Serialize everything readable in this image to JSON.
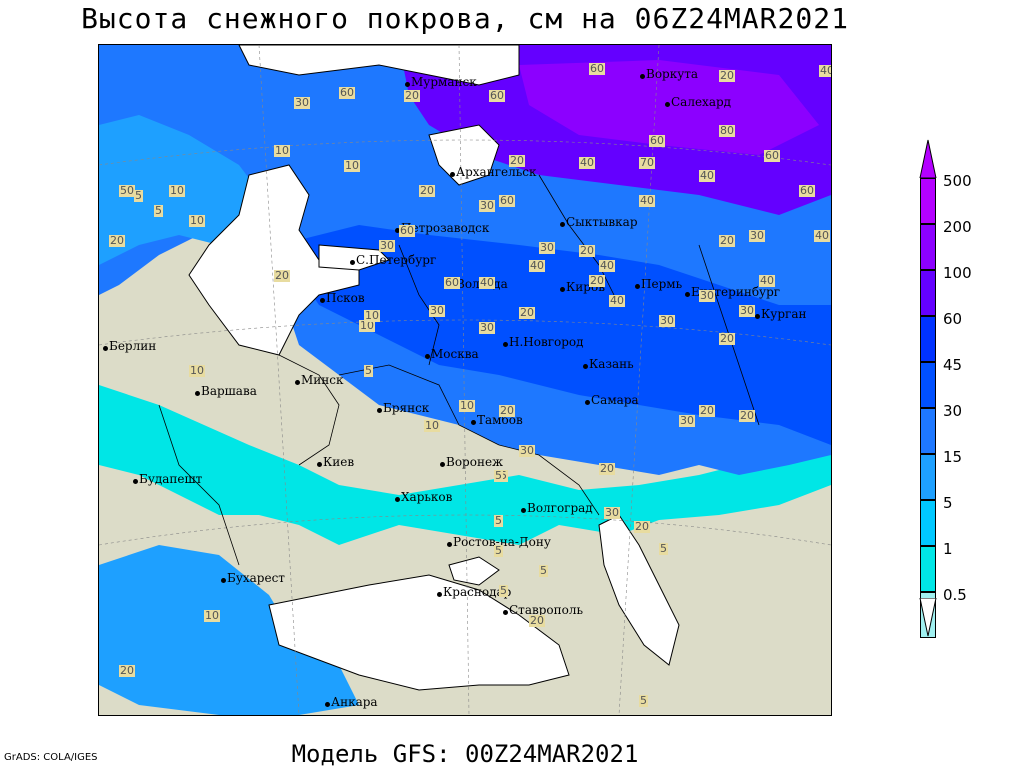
{
  "title": "Высота снежного покрова, см на 06Z24MAR2021",
  "subtitle": "Модель GFS: 00Z24MAR2021",
  "credit": "GrADS: COLA/IGES",
  "legend": {
    "labels": [
      "500",
      "200",
      "100",
      "60",
      "45",
      "30",
      "15",
      "5",
      "1",
      "0.5"
    ],
    "colors": [
      "#b400ff",
      "#8c00ff",
      "#6400ff",
      "#0032ff",
      "#0050ff",
      "#1e78ff",
      "#1ea0ff",
      "#00c8ff",
      "#00e6e6",
      "#a0f0f0"
    ]
  },
  "cities": [
    {
      "name": "Мурманск"
    },
    {
      "name": "Воркута"
    },
    {
      "name": "Салехард"
    },
    {
      "name": "Архангельск"
    },
    {
      "name": "Петрозаводск"
    },
    {
      "name": "Сыктывкар"
    },
    {
      "name": "С.Петербург"
    },
    {
      "name": "Вологда"
    },
    {
      "name": "Киров"
    },
    {
      "name": "Пермь"
    },
    {
      "name": "Екатеринбург"
    },
    {
      "name": "Курган"
    },
    {
      "name": "Псков"
    },
    {
      "name": "Н.Новгород"
    },
    {
      "name": "Казань"
    },
    {
      "name": "Берлин"
    },
    {
      "name": "Москва"
    },
    {
      "name": "Минск"
    },
    {
      "name": "Варшава"
    },
    {
      "name": "Брянск"
    },
    {
      "name": "Тамбов"
    },
    {
      "name": "Самара"
    },
    {
      "name": "Киев"
    },
    {
      "name": "Воронеж"
    },
    {
      "name": "Будапешт"
    },
    {
      "name": "Харьков"
    },
    {
      "name": "Волгоград"
    },
    {
      "name": "Ростов-на-Дону"
    },
    {
      "name": "Бухарест"
    },
    {
      "name": "Краснодар"
    },
    {
      "name": "Ставрополь"
    },
    {
      "name": "Анкара"
    }
  ],
  "contour_values": [
    "60",
    "20",
    "40",
    "30",
    "60",
    "20",
    "60",
    "80",
    "10",
    "10",
    "20",
    "60",
    "40",
    "70",
    "60",
    "60",
    "40",
    "20",
    "40",
    "30",
    "60",
    "60",
    "30",
    "30",
    "40",
    "20",
    "20",
    "30",
    "40",
    "40",
    "40",
    "30",
    "30",
    "10",
    "20",
    "40",
    "60",
    "40",
    "30",
    "20",
    "30",
    "30",
    "20",
    "30",
    "20",
    "10",
    "20",
    "10",
    "30",
    "20",
    "5",
    "30",
    "20",
    "5",
    "20",
    "50",
    "5",
    "10",
    "5",
    "10",
    "20",
    "10",
    "20",
    "10",
    "5",
    "5",
    "5",
    "5",
    "10",
    "20",
    "5",
    "5",
    "20",
    "5"
  ]
}
